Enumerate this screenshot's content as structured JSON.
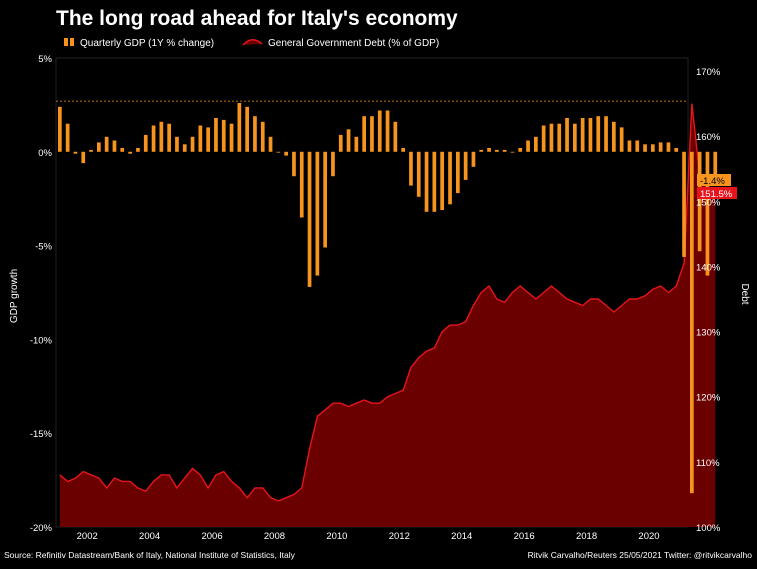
{
  "chart_data": {
    "type": "bar+area",
    "title": "The long road ahead for Italy's economy",
    "legend": {
      "placement": "top-left",
      "gdp_label": "Quarterly GDP (1Y % change)",
      "debt_label": "General Government Debt (% of GDP)"
    },
    "y_left": {
      "label": "GDP growth",
      "ticks": [
        "5%",
        "0%",
        "-5%",
        "-10%",
        "-15%",
        "-20%"
      ],
      "tick_values": [
        5,
        0,
        -5,
        -10,
        -15,
        -20
      ],
      "range": [
        -20,
        5
      ]
    },
    "y_right": {
      "label": "Debt",
      "ticks": [
        "170%",
        "160%",
        "150%",
        "140%",
        "130%",
        "120%",
        "110%",
        "100%"
      ],
      "tick_values": [
        170,
        160,
        150,
        140,
        130,
        120,
        110,
        100
      ],
      "range": [
        100,
        172
      ]
    },
    "x_ticks": [
      "2002",
      "2004",
      "2006",
      "2008",
      "2010",
      "2012",
      "2014",
      "2016",
      "2018",
      "2020"
    ],
    "x_range": [
      2001.0,
      2021.25
    ],
    "reference_line_pct": 2.7,
    "series": [
      {
        "name": "Quarterly GDP (1Y % change)",
        "color": "#f7941d",
        "start": 2001.0,
        "step": 0.25,
        "values": [
          2.4,
          1.5,
          -0.1,
          -0.6,
          0.1,
          0.5,
          0.8,
          0.6,
          0.2,
          -0.1,
          0.2,
          0.9,
          1.4,
          1.6,
          1.5,
          0.8,
          0.4,
          0.8,
          1.4,
          1.3,
          1.8,
          1.7,
          1.5,
          2.6,
          2.4,
          1.9,
          1.6,
          0.8,
          0.0,
          -0.2,
          -1.3,
          -3.5,
          -7.2,
          -6.6,
          -5.1,
          -1.3,
          0.9,
          1.2,
          0.8,
          1.9,
          1.9,
          2.2,
          2.2,
          1.6,
          0.2,
          -1.8,
          -2.4,
          -3.2,
          -3.2,
          -3.1,
          -2.8,
          -2.2,
          -1.5,
          -0.8,
          0.1,
          0.2,
          0.1,
          0.1,
          0.0,
          0.2,
          0.6,
          0.8,
          1.4,
          1.5,
          1.5,
          1.8,
          1.5,
          1.8,
          1.8,
          1.9,
          1.9,
          1.6,
          1.3,
          0.6,
          0.6,
          0.4,
          0.4,
          0.5,
          0.5,
          0.2,
          -5.6,
          -18.2,
          -5.3,
          -6.6,
          -1.4
        ]
      },
      {
        "name": "General Government Debt (% of GDP)",
        "color": "#e8141c",
        "fill": "#6b0000",
        "start": 2001.0,
        "step": 0.25,
        "values": [
          108.0,
          107.0,
          107.5,
          108.5,
          108.0,
          107.5,
          106.0,
          107.5,
          107.0,
          107.0,
          106.0,
          105.5,
          107.0,
          108.0,
          108.0,
          106.0,
          107.5,
          109.0,
          108.0,
          106.0,
          108.0,
          108.5,
          107.0,
          106.0,
          104.5,
          106.0,
          106.0,
          104.5,
          104.0,
          104.5,
          105.0,
          106.0,
          112.0,
          117.0,
          118.0,
          119.0,
          119.0,
          118.5,
          119.0,
          119.5,
          119.0,
          119.0,
          120.0,
          120.5,
          121.0,
          124.5,
          126.0,
          127.0,
          127.5,
          130.0,
          131.0,
          131.0,
          131.5,
          134.0,
          136.0,
          137.0,
          135.0,
          134.5,
          136.0,
          137.0,
          136.0,
          135.0,
          136.0,
          137.0,
          136.0,
          135.0,
          134.5,
          134.0,
          135.0,
          135.0,
          134.0,
          133.0,
          134.0,
          135.0,
          135.0,
          135.5,
          136.5,
          137.0,
          136.0,
          137.0,
          140.5,
          165.0,
          154.0,
          152.0,
          151.5
        ]
      }
    ],
    "end_labels": {
      "gdp": "-1.4%",
      "debt": "151.5%"
    },
    "source": "Source: Refinitiv Datastream/Bank of Italy, National Institute of Statistics, Italy",
    "credit": "Ritvik Carvalho/Reuters 25/05/2021 Twitter: @ritvikcarvalho"
  }
}
